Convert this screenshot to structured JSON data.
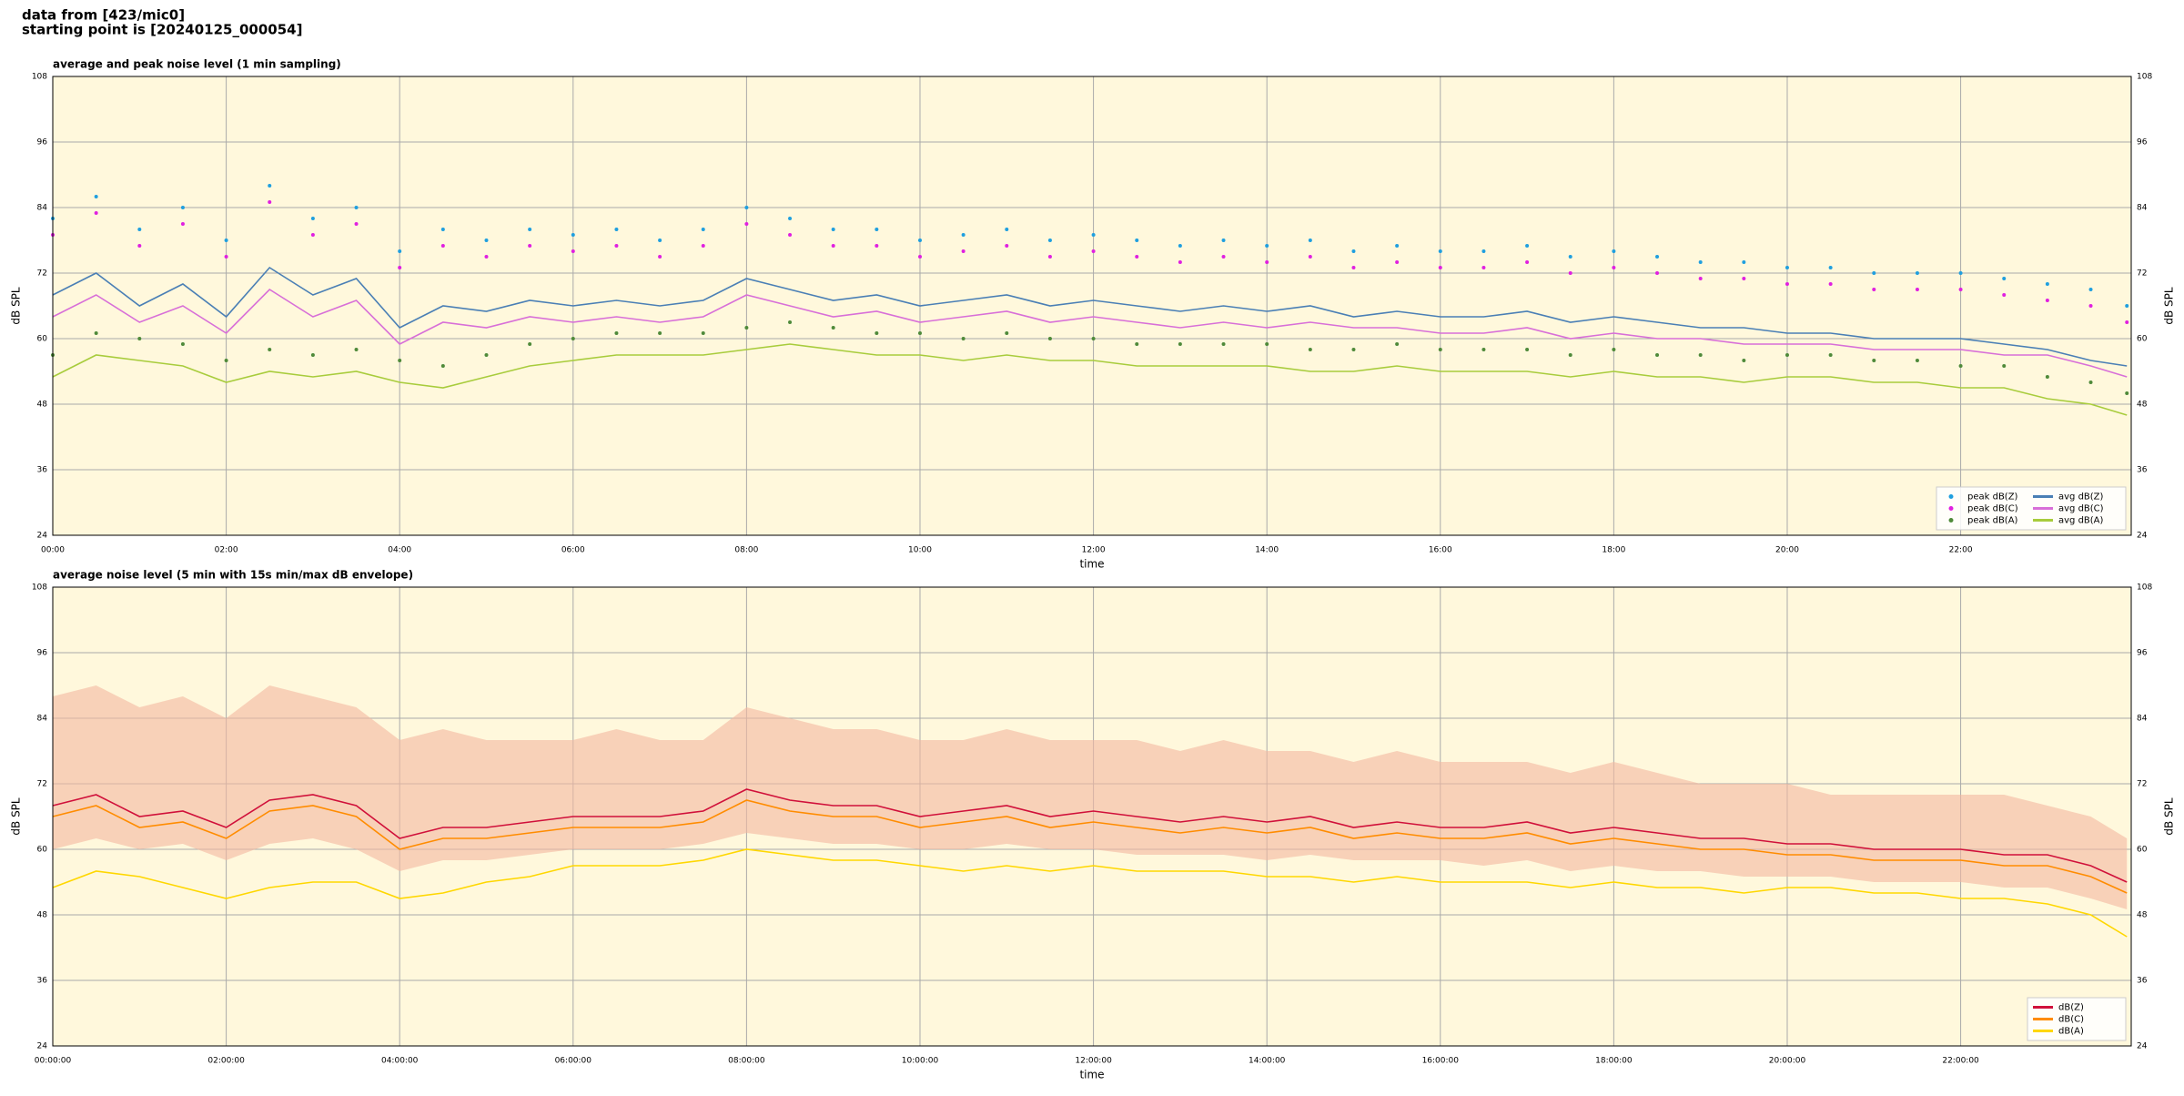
{
  "header": {
    "line1": "data from [423/mic0]",
    "line2": "starting point is [20240125_000054]"
  },
  "chart_data": [
    {
      "type": "line",
      "title": "average and peak noise level (1 min sampling)",
      "xlabel": "time",
      "ylabel": "dB SPL",
      "x": [
        "00:00",
        "00:30",
        "01:00",
        "01:30",
        "02:00",
        "02:30",
        "03:00",
        "03:30",
        "04:00",
        "04:30",
        "05:00",
        "05:30",
        "06:00",
        "06:30",
        "07:00",
        "07:30",
        "08:00",
        "08:30",
        "09:00",
        "09:30",
        "10:00",
        "10:30",
        "11:00",
        "11:30",
        "12:00",
        "12:30",
        "13:00",
        "13:30",
        "14:00",
        "14:30",
        "15:00",
        "15:30",
        "16:00",
        "16:30",
        "17:00",
        "17:30",
        "18:00",
        "18:30",
        "19:00",
        "19:30",
        "20:00",
        "20:30",
        "21:00",
        "21:30",
        "22:00",
        "22:30",
        "23:00",
        "23:30",
        "23:55"
      ],
      "xlim": [
        "00:00",
        "23:58"
      ],
      "xticks": [
        "00:00",
        "02:00",
        "04:00",
        "06:00",
        "08:00",
        "10:00",
        "12:00",
        "14:00",
        "16:00",
        "18:00",
        "20:00",
        "22:00"
      ],
      "ylim": [
        24,
        108
      ],
      "yticks": [
        24,
        36,
        48,
        60,
        72,
        84,
        96,
        108
      ],
      "grid": true,
      "legend": "lower right",
      "legend_columns": 2,
      "series": [
        {
          "name": "peak dB(Z)",
          "type": "scatter",
          "color": "#1f9fdf",
          "values": [
            82,
            86,
            80,
            84,
            78,
            88,
            82,
            84,
            76,
            80,
            78,
            80,
            79,
            80,
            78,
            80,
            84,
            82,
            80,
            80,
            78,
            79,
            80,
            78,
            79,
            78,
            77,
            78,
            77,
            78,
            76,
            77,
            76,
            76,
            77,
            75,
            76,
            75,
            74,
            74,
            73,
            73,
            72,
            72,
            72,
            71,
            70,
            69,
            66
          ]
        },
        {
          "name": "peak dB(C)",
          "type": "scatter",
          "color": "#e020e0",
          "values": [
            79,
            83,
            77,
            81,
            75,
            85,
            79,
            81,
            73,
            77,
            75,
            77,
            76,
            77,
            75,
            77,
            81,
            79,
            77,
            77,
            75,
            76,
            77,
            75,
            76,
            75,
            74,
            75,
            74,
            75,
            73,
            74,
            73,
            73,
            74,
            72,
            73,
            72,
            71,
            71,
            70,
            70,
            69,
            69,
            69,
            68,
            67,
            66,
            63
          ]
        },
        {
          "name": "peak dB(A)",
          "type": "scatter",
          "color": "#4f8a3a",
          "values": [
            57,
            61,
            60,
            59,
            56,
            58,
            57,
            58,
            56,
            55,
            57,
            59,
            60,
            61,
            61,
            61,
            62,
            63,
            62,
            61,
            61,
            60,
            61,
            60,
            60,
            59,
            59,
            59,
            59,
            58,
            58,
            59,
            58,
            58,
            58,
            57,
            58,
            57,
            57,
            56,
            57,
            57,
            56,
            56,
            55,
            55,
            53,
            52,
            50
          ]
        },
        {
          "name": "avg dB(Z)",
          "type": "line",
          "color": "#4a7fb5",
          "values": [
            68,
            72,
            66,
            70,
            64,
            73,
            68,
            71,
            62,
            66,
            65,
            67,
            66,
            67,
            66,
            67,
            71,
            69,
            67,
            68,
            66,
            67,
            68,
            66,
            67,
            66,
            65,
            66,
            65,
            66,
            64,
            65,
            64,
            64,
            65,
            63,
            64,
            63,
            62,
            62,
            61,
            61,
            60,
            60,
            60,
            59,
            58,
            56,
            55
          ]
        },
        {
          "name": "avg dB(C)",
          "type": "line",
          "color": "#d86fd8",
          "values": [
            64,
            68,
            63,
            66,
            61,
            69,
            64,
            67,
            59,
            63,
            62,
            64,
            63,
            64,
            63,
            64,
            68,
            66,
            64,
            65,
            63,
            64,
            65,
            63,
            64,
            63,
            62,
            63,
            62,
            63,
            62,
            62,
            61,
            61,
            62,
            60,
            61,
            60,
            60,
            59,
            59,
            59,
            58,
            58,
            58,
            57,
            57,
            55,
            53
          ]
        },
        {
          "name": "avg dB(A)",
          "type": "line",
          "color": "#a8cc3c",
          "values": [
            53,
            57,
            56,
            55,
            52,
            54,
            53,
            54,
            52,
            51,
            53,
            55,
            56,
            57,
            57,
            57,
            58,
            59,
            58,
            57,
            57,
            56,
            57,
            56,
            56,
            55,
            55,
            55,
            55,
            54,
            54,
            55,
            54,
            54,
            54,
            53,
            54,
            53,
            53,
            52,
            53,
            53,
            52,
            52,
            51,
            51,
            49,
            48,
            46
          ]
        }
      ]
    },
    {
      "type": "line",
      "title": "average noise level (5 min with 15s min/max dB envelope)",
      "xlabel": "time",
      "ylabel": "dB SPL",
      "x": [
        "00:00:00",
        "00:30:00",
        "01:00:00",
        "01:30:00",
        "02:00:00",
        "02:30:00",
        "03:00:00",
        "03:30:00",
        "04:00:00",
        "04:30:00",
        "05:00:00",
        "05:30:00",
        "06:00:00",
        "06:30:00",
        "07:00:00",
        "07:30:00",
        "08:00:00",
        "08:30:00",
        "09:00:00",
        "09:30:00",
        "10:00:00",
        "10:30:00",
        "11:00:00",
        "11:30:00",
        "12:00:00",
        "12:30:00",
        "13:00:00",
        "13:30:00",
        "14:00:00",
        "14:30:00",
        "15:00:00",
        "15:30:00",
        "16:00:00",
        "16:30:00",
        "17:00:00",
        "17:30:00",
        "18:00:00",
        "18:30:00",
        "19:00:00",
        "19:30:00",
        "20:00:00",
        "20:30:00",
        "21:00:00",
        "21:30:00",
        "22:00:00",
        "22:30:00",
        "23:00:00",
        "23:30:00",
        "23:55:00"
      ],
      "xlim": [
        "00:00:00",
        "23:58:00"
      ],
      "xticks": [
        "00:00:00",
        "02:00:00",
        "04:00:00",
        "06:00:00",
        "08:00:00",
        "10:00:00",
        "12:00:00",
        "14:00:00",
        "16:00:00",
        "18:00:00",
        "20:00:00",
        "22:00:00"
      ],
      "ylim": [
        24,
        108
      ],
      "yticks": [
        24,
        36,
        48,
        60,
        72,
        84,
        96,
        108
      ],
      "grid": true,
      "legend": "lower right",
      "legend_columns": 1,
      "envelope": {
        "color": "#f4b8a0",
        "upper": [
          88,
          90,
          86,
          88,
          84,
          90,
          88,
          86,
          80,
          82,
          80,
          80,
          80,
          82,
          80,
          80,
          86,
          84,
          82,
          82,
          80,
          80,
          82,
          80,
          80,
          80,
          78,
          80,
          78,
          78,
          76,
          78,
          76,
          76,
          76,
          74,
          76,
          74,
          72,
          72,
          72,
          70,
          70,
          70,
          70,
          70,
          68,
          66,
          62
        ],
        "lower": [
          60,
          62,
          60,
          61,
          58,
          61,
          62,
          60,
          56,
          58,
          58,
          59,
          60,
          60,
          60,
          61,
          63,
          62,
          61,
          61,
          60,
          60,
          61,
          60,
          60,
          59,
          59,
          59,
          58,
          59,
          58,
          58,
          58,
          57,
          58,
          56,
          57,
          56,
          56,
          55,
          55,
          55,
          54,
          54,
          54,
          53,
          53,
          51,
          49
        ]
      },
      "series": [
        {
          "name": "dB(Z)",
          "type": "line",
          "color": "#d0103a",
          "values": [
            68,
            70,
            66,
            67,
            64,
            69,
            70,
            68,
            62,
            64,
            64,
            65,
            66,
            66,
            66,
            67,
            71,
            69,
            68,
            68,
            66,
            67,
            68,
            66,
            67,
            66,
            65,
            66,
            65,
            66,
            64,
            65,
            64,
            64,
            65,
            63,
            64,
            63,
            62,
            62,
            61,
            61,
            60,
            60,
            60,
            59,
            59,
            57,
            54
          ]
        },
        {
          "name": "dB(C)",
          "type": "line",
          "color": "#ff8c00",
          "values": [
            66,
            68,
            64,
            65,
            62,
            67,
            68,
            66,
            60,
            62,
            62,
            63,
            64,
            64,
            64,
            65,
            69,
            67,
            66,
            66,
            64,
            65,
            66,
            64,
            65,
            64,
            63,
            64,
            63,
            64,
            62,
            63,
            62,
            62,
            63,
            61,
            62,
            61,
            60,
            60,
            59,
            59,
            58,
            58,
            58,
            57,
            57,
            55,
            52
          ]
        },
        {
          "name": "dB(A)",
          "type": "line",
          "color": "#ffd700",
          "values": [
            53,
            56,
            55,
            53,
            51,
            53,
            54,
            54,
            51,
            52,
            54,
            55,
            57,
            57,
            57,
            58,
            60,
            59,
            58,
            58,
            57,
            56,
            57,
            56,
            57,
            56,
            56,
            56,
            55,
            55,
            54,
            55,
            54,
            54,
            54,
            53,
            54,
            53,
            53,
            52,
            53,
            53,
            52,
            52,
            51,
            51,
            50,
            48,
            44
          ]
        }
      ]
    }
  ]
}
